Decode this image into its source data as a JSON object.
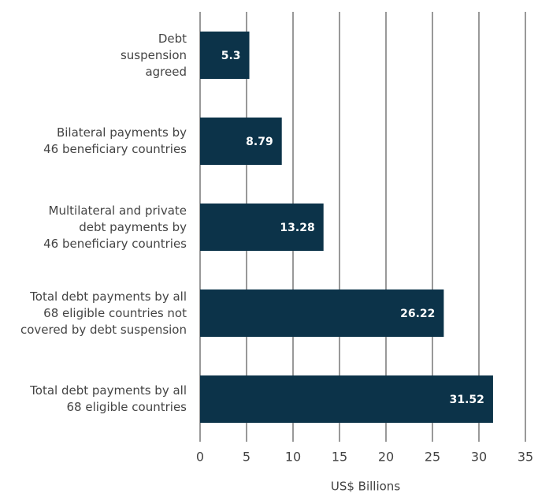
{
  "chart_data": {
    "type": "barh",
    "categories": [
      "Debt\nsuspension\nagreed",
      "Bilateral payments by\n46 beneficiary countries",
      "Multilateral and private\ndebt payments by\n46 beneficiary countries",
      "Total debt payments by all\n68 eligible countries not\ncovered by debt suspension",
      "Total debt payments by all\n68 eligible countries"
    ],
    "values": [
      5.3,
      8.79,
      13.28,
      26.22,
      31.52
    ],
    "color": "#0c3349",
    "xlabel": "US$ Billions",
    "xlim": [
      0,
      35
    ],
    "xticks": [
      0,
      5,
      10,
      15,
      20,
      25,
      30,
      35
    ],
    "grid": true
  }
}
